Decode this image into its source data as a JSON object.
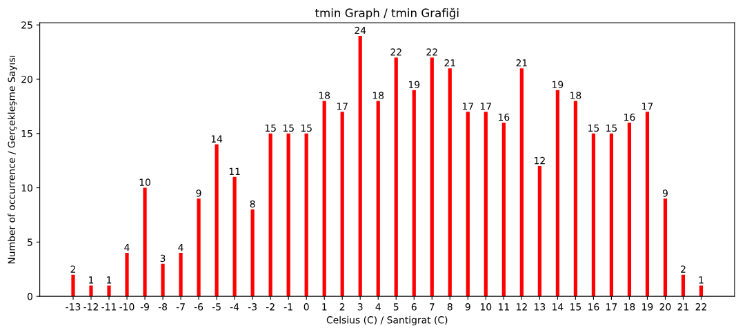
{
  "chart_data": {
    "type": "bar",
    "title": "tmin Graph / tmin Grafiği",
    "xlabel": "Celsius (C) / Santigrat (C)",
    "ylabel": "Number of occurrence / Gerçekleşme Sayısı",
    "categories": [
      "-13",
      "-12",
      "-11",
      "-10",
      "-9",
      "-8",
      "-7",
      "-6",
      "-5",
      "-4",
      "-3",
      "-2",
      "-1",
      "0",
      "1",
      "2",
      "3",
      "4",
      "5",
      "6",
      "7",
      "8",
      "9",
      "10",
      "11",
      "12",
      "13",
      "14",
      "15",
      "16",
      "17",
      "18",
      "19",
      "20",
      "21",
      "22"
    ],
    "values": [
      2,
      1,
      1,
      4,
      10,
      3,
      4,
      9,
      14,
      11,
      8,
      15,
      15,
      15,
      18,
      17,
      24,
      18,
      22,
      19,
      22,
      21,
      17,
      17,
      16,
      21,
      12,
      19,
      18,
      15,
      15,
      16,
      17,
      9,
      2,
      1
    ],
    "color": "#ff0000",
    "ylim": [
      0,
      25.2
    ],
    "yticks": [
      0,
      5,
      10,
      15,
      20,
      25
    ],
    "data_labels": true,
    "grid": false,
    "legend": false
  }
}
